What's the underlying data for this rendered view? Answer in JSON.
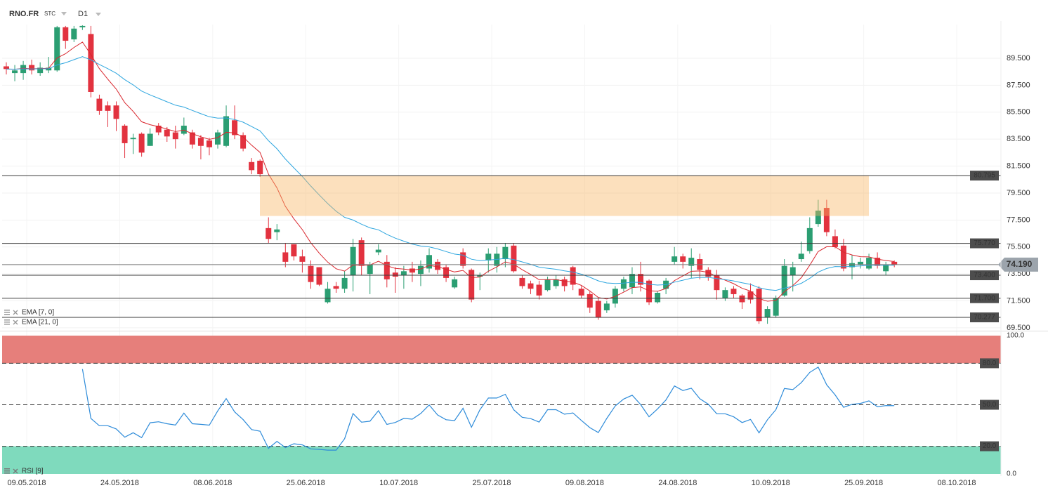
{
  "header": {
    "symbol": "RNO.FR",
    "feed": "STC",
    "timeframe": "D1"
  },
  "chart_data": [
    {
      "type": "candlestick",
      "ylim": [
        69.34,
        92.0
      ],
      "yticks": [
        {
          "value": 69.5,
          "label": "69.500"
        },
        {
          "value": 71.5,
          "label": "71.500"
        },
        {
          "value": 73.5,
          "label": "73.500"
        },
        {
          "value": 75.5,
          "label": "75.500"
        },
        {
          "value": 77.5,
          "label": "77.500"
        },
        {
          "value": 79.5,
          "label": "79.500"
        },
        {
          "value": 81.5,
          "label": "81.500"
        },
        {
          "value": 83.5,
          "label": "83.500"
        },
        {
          "value": 85.5,
          "label": "85.500"
        },
        {
          "value": 87.5,
          "label": "87.500"
        },
        {
          "value": 89.5,
          "label": "89.500"
        }
      ],
      "xtick_labels": [
        "09.05.2018",
        "24.05.2018",
        "08.06.2018",
        "25.06.2018",
        "10.07.2018",
        "25.07.2018",
        "09.08.2018",
        "24.08.2018",
        "10.09.2018",
        "25.09.2018",
        "08.10.2018"
      ],
      "up_color": "#2b9e72",
      "down_color": "#e2323f",
      "open": [
        88.9,
        88.4,
        88.4,
        89.0,
        88.4,
        88.6,
        88.6,
        91.8,
        90.9,
        91.8,
        91.3,
        86.5,
        86.0,
        86.0,
        84.5,
        83.5,
        83.9,
        83.0,
        84.5,
        84.2,
        84.0,
        83.9,
        84.0,
        83.6,
        83.4,
        83.1,
        83.0,
        84.9,
        83.8,
        81.8,
        81.9,
        76.9,
        76.6,
        75.1,
        75.7,
        74.8,
        74.1,
        74.0,
        71.4,
        72.6,
        72.4,
        73.4,
        76.0,
        73.5,
        75.1,
        74.4,
        73.6,
        73.4,
        73.9,
        73.5,
        73.9,
        74.4,
        74.0,
        72.5,
        75.1,
        73.8,
        73.3,
        74.5,
        74.1,
        74.6,
        75.6,
        73.2,
        72.8,
        72.7,
        72.3,
        72.6,
        73.1,
        74.0,
        72.4,
        72.0,
        71.5,
        70.8,
        71.3,
        72.4,
        72.5,
        73.5,
        73.0,
        71.4,
        72.4,
        74.4,
        74.8,
        74.1,
        74.6,
        73.8,
        73.4,
        71.7,
        72.4,
        71.9,
        72.2,
        72.4,
        70.3,
        70.4,
        71.9,
        73.4,
        74.6,
        75.2,
        77.2,
        78.4,
        76.3,
        75.6,
        74.0,
        74.2,
        73.9,
        74.7,
        73.7,
        74.4
      ],
      "high": [
        89.2,
        89.0,
        89.3,
        89.4,
        89.2,
        89.6,
        91.9,
        91.9,
        91.9,
        91.95,
        91.9,
        86.8,
        86.3,
        86.3,
        84.6,
        83.9,
        84.0,
        84.3,
        84.7,
        84.4,
        84.5,
        85.1,
        84.2,
        83.8,
        83.6,
        84.2,
        86.0,
        86.0,
        84.0,
        82.1,
        82.0,
        77.7,
        77.2,
        75.8,
        75.7,
        75.3,
        74.5,
        74.0,
        72.9,
        72.9,
        73.7,
        76.1,
        76.2,
        74.4,
        75.7,
        74.9,
        74.0,
        74.1,
        74.4,
        74.5,
        75.4,
        74.6,
        74.2,
        73.3,
        75.4,
        73.9,
        73.6,
        75.4,
        75.5,
        75.8,
        75.8,
        73.4,
        73.0,
        73.0,
        73.3,
        73.4,
        73.3,
        74.1,
        72.6,
        72.2,
        71.7,
        71.5,
        72.6,
        73.3,
        74.0,
        74.4,
        73.1,
        72.2,
        73.2,
        75.5,
        75.0,
        75.4,
        75.0,
        74.0,
        73.8,
        72.5,
        72.6,
        72.0,
        72.8,
        72.6,
        71.1,
        71.9,
        74.6,
        74.4,
        75.9,
        77.7,
        79.0,
        79.0,
        76.8,
        76.1,
        74.9,
        74.7,
        75.0,
        75.1,
        74.4,
        74.5
      ],
      "low": [
        88.3,
        87.8,
        87.9,
        88.3,
        88.2,
        88.4,
        88.5,
        90.2,
        90.7,
        91.6,
        86.6,
        85.3,
        84.4,
        84.1,
        82.1,
        82.4,
        82.2,
        83.0,
        83.8,
        83.3,
        82.8,
        83.8,
        82.8,
        82.0,
        82.3,
        82.8,
        82.9,
        83.5,
        82.6,
        80.9,
        80.7,
        75.8,
        76.0,
        74.0,
        74.5,
        73.6,
        72.4,
        72.6,
        71.3,
        72.1,
        72.1,
        72.2,
        73.4,
        72.0,
        74.9,
        72.5,
        72.1,
        72.4,
        72.9,
        72.6,
        73.6,
        73.5,
        72.9,
        72.4,
        73.9,
        71.4,
        72.3,
        73.6,
        73.6,
        74.0,
        73.6,
        72.4,
        72.0,
        71.6,
        72.2,
        72.4,
        72.2,
        72.3,
        71.7,
        70.6,
        70.1,
        70.6,
        71.0,
        72.2,
        72.0,
        72.2,
        71.2,
        71.3,
        72.0,
        74.2,
        73.9,
        73.2,
        73.1,
        73.0,
        71.6,
        71.5,
        71.7,
        70.9,
        71.3,
        69.8,
        69.8,
        70.3,
        71.8,
        72.2,
        74.4,
        75.0,
        77.0,
        76.3,
        75.4,
        73.7,
        73.1,
        73.9,
        73.8,
        73.9,
        73.4,
        74.0
      ],
      "close": [
        88.7,
        88.6,
        89.0,
        88.6,
        88.8,
        88.8,
        91.8,
        90.8,
        91.7,
        91.9,
        87.0,
        85.6,
        85.6,
        85.0,
        83.2,
        83.6,
        82.5,
        83.9,
        84.0,
        83.7,
        83.5,
        84.5,
        83.1,
        83.0,
        82.9,
        84.0,
        85.2,
        83.8,
        82.8,
        81.2,
        80.9,
        76.1,
        76.8,
        74.4,
        74.8,
        74.4,
        72.9,
        72.7,
        72.4,
        72.4,
        73.2,
        75.5,
        74.1,
        74.2,
        75.3,
        73.1,
        73.3,
        73.7,
        73.6,
        74.1,
        74.9,
        73.8,
        73.2,
        73.1,
        74.1,
        71.6,
        73.4,
        75.0,
        75.0,
        75.5,
        73.7,
        72.6,
        72.4,
        71.9,
        73.1,
        73.1,
        72.6,
        72.7,
        71.9,
        71.0,
        70.3,
        71.3,
        72.4,
        73.1,
        73.5,
        72.7,
        71.4,
        72.1,
        73.0,
        74.8,
        74.4,
        74.7,
        73.8,
        73.3,
        72.3,
        72.3,
        72.0,
        71.4,
        71.6,
        70.0,
        70.9,
        71.7,
        74.1,
        74.0,
        75.0,
        76.9,
        78.2,
        76.6,
        75.5,
        73.9,
        74.3,
        74.4,
        74.7,
        74.1,
        74.2,
        74.19
      ],
      "indicators": [
        {
          "type": "ema",
          "name": "EMA [7, 0]",
          "color": "#d9272e"
        },
        {
          "type": "ema",
          "name": "EMA [21, 0]",
          "color": "#2ea6df"
        }
      ],
      "levels": [
        80.795,
        {
          "value": 75.77,
          "label": "75.770"
        },
        {
          "value": 73.4,
          "label": "73.400"
        },
        {
          "value": 71.7,
          "label": "71.700"
        },
        70.277
      ],
      "zone": {
        "low": 77.8,
        "high": 80.795,
        "color": "#f9b661"
      },
      "last": {
        "value": 74.19,
        "label": "74.190"
      }
    },
    {
      "type": "rsi",
      "name": "RSI [9]",
      "color": "#2d8bd9",
      "ylim": [
        0,
        100
      ],
      "yticks": [
        {
          "value": 100,
          "label": "100.0"
        },
        {
          "value": 0,
          "label": "0.0"
        }
      ],
      "levels": [
        {
          "value": 80,
          "label": "80.0"
        },
        {
          "value": 50,
          "label": "50.0"
        },
        {
          "value": 20,
          "label": "20.0"
        }
      ],
      "overbought_color": "#e67f7b",
      "oversold_color": "#7fdabd"
    }
  ]
}
